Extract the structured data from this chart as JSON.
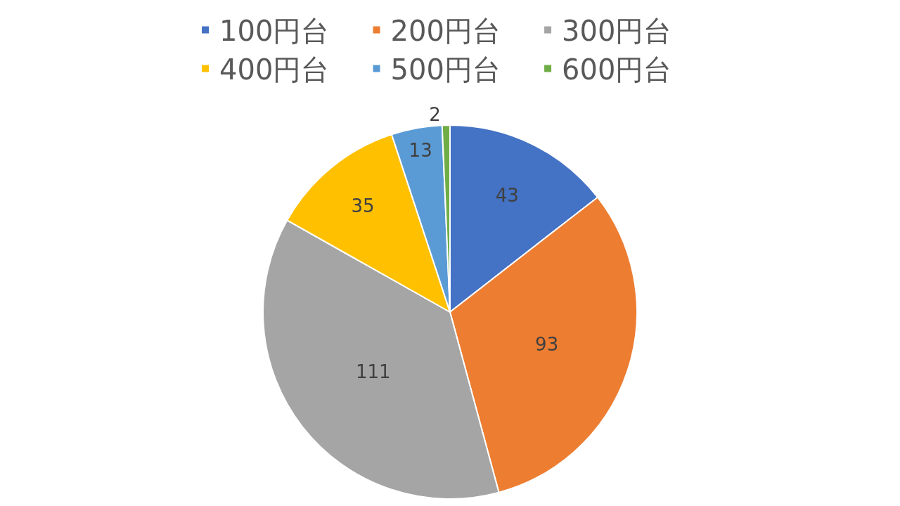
{
  "chart_data": {
    "type": "pie",
    "categories": [
      "100円台",
      "200円台",
      "300円台",
      "400円台",
      "500円台",
      "600円台"
    ],
    "values": [
      43,
      93,
      111,
      35,
      13,
      2
    ],
    "colors": [
      "#4472c4",
      "#ed7d31",
      "#a5a5a5",
      "#ffc000",
      "#5b9bd5",
      "#70ad47"
    ],
    "data_labels": true,
    "legend": "top"
  }
}
